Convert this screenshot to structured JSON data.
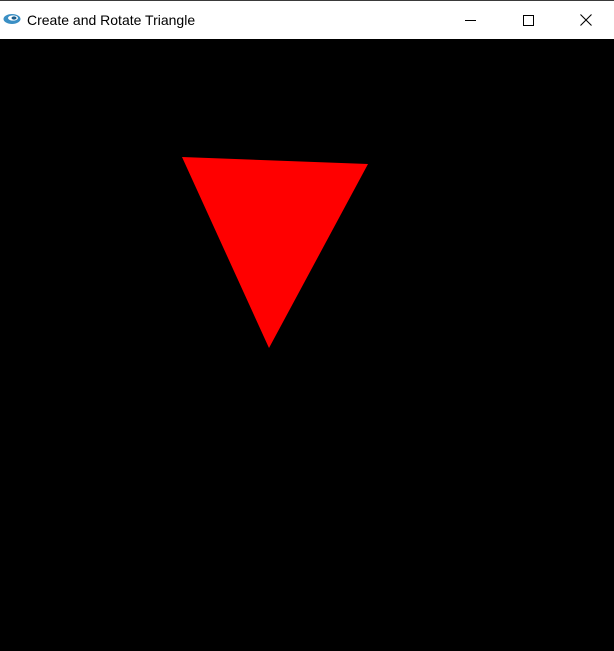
{
  "window": {
    "title": "Create and Rotate Triangle",
    "app_icon": "opengl-app-icon",
    "controls": {
      "minimize_icon": "minimize-icon",
      "maximize_icon": "maximize-icon",
      "close_icon": "close-icon"
    }
  },
  "canvas": {
    "background_color": "#000000",
    "triangle_color": "#ff0000"
  }
}
